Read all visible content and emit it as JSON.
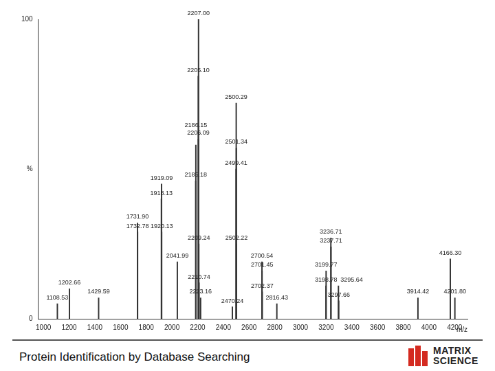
{
  "chart_data": {
    "type": "bar",
    "x": [
      1108.53,
      1202.66,
      1429.59,
      1731.9,
      1732.78,
      1918.13,
      1919.09,
      1920.13,
      2041.99,
      2185.18,
      2186.15,
      2205.1,
      2206.09,
      2207.0,
      2209.24,
      2210.74,
      2223.16,
      2470.24,
      2499.41,
      2500.29,
      2501.34,
      2502.22,
      2700.54,
      2701.45,
      2702.37,
      2816.43,
      3198.78,
      3199.77,
      3236.71,
      3237.71,
      3295.64,
      3297.66,
      3914.42,
      4166.3,
      4201.8
    ],
    "values": [
      5,
      10,
      7,
      32,
      29,
      40,
      45,
      29,
      19,
      46,
      58,
      81,
      60,
      100,
      25,
      12,
      7,
      4,
      50,
      72,
      57,
      25,
      19,
      16,
      9,
      5,
      11,
      16,
      27,
      24,
      11,
      6,
      7,
      20,
      7
    ],
    "annotations": [
      "1108.53",
      "1202.66",
      "1429.59",
      "1731.90",
      "1732.78",
      "1918.13",
      "1919.09",
      "1920.13",
      "2041.99",
      "2185.18",
      "2186.15",
      "2205.10",
      "2206.09",
      "2207.00",
      "2209.24",
      "2210.74",
      "2223.16",
      "2470.24",
      "2499.41",
      "2500.29",
      "2501.34",
      "2502.22",
      "2700.54",
      "2701.45",
      "2702.37",
      "2816.43",
      "3198.78",
      "3199.77",
      "3236.71",
      "3237.71",
      "3295.64",
      "3297.66",
      "3914.42",
      "4166.30",
      "4201.80"
    ],
    "color": "#333333",
    "x_label": "m/z",
    "xlim": [
      960,
      4300
    ],
    "xticks": [
      1000,
      1200,
      1400,
      1600,
      1800,
      2000,
      2200,
      2400,
      2600,
      2800,
      3000,
      3200,
      3400,
      3600,
      3800,
      4000,
      4200
    ],
    "ylim": [
      0,
      100
    ],
    "yticks": [
      0,
      {
        "value": 50,
        "label": "%"
      },
      100
    ],
    "grid": false
  },
  "footer": {
    "text": "Protein Identification by Database Searching",
    "logo": [
      "MATRIX",
      "SCIENCE"
    ]
  }
}
